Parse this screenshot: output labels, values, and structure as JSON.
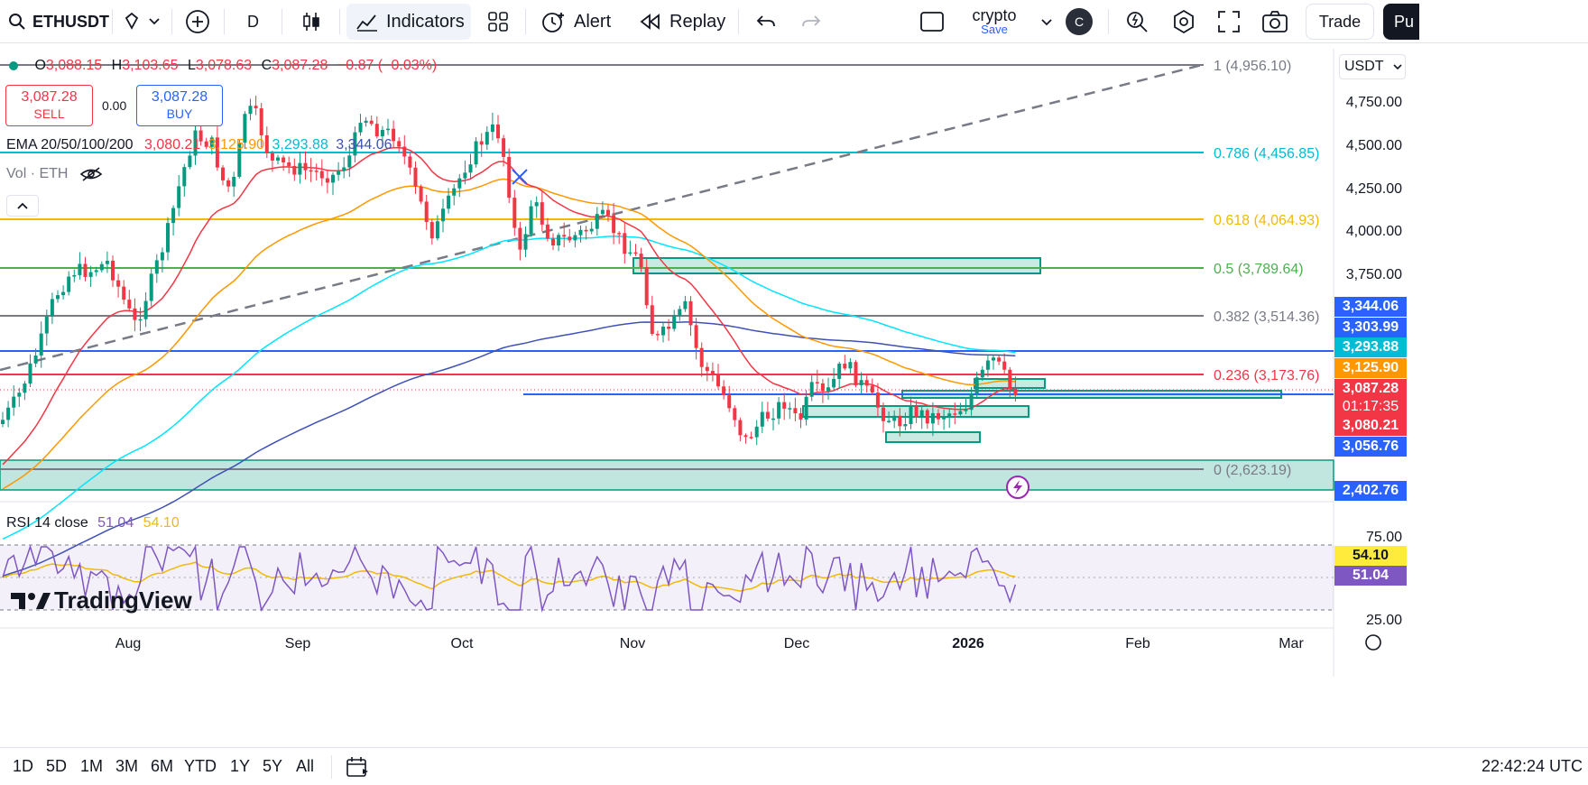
{
  "toolbar": {
    "symbol": "ETHUSDT",
    "interval": "D",
    "indicators_label": "Indicators",
    "alert_label": "Alert",
    "replay_label": "Replay",
    "layout_name": "crypto",
    "layout_save": "Save",
    "avatar_letter": "C",
    "trade_label": "Trade",
    "publish_label": "Pu"
  },
  "legend": {
    "ohlc": {
      "o_label": "O",
      "o": "3,088.15",
      "h_label": "H",
      "h": "3,103.65",
      "l_label": "L",
      "l": "3,078.63",
      "c_label": "C",
      "c": "3,087.28",
      "change": "−0.87 (−0.03%)"
    },
    "sell_price": "3,087.28",
    "sell_label": "SELL",
    "spread": "0.00",
    "buy_price": "3,087.28",
    "buy_label": "BUY",
    "ema_label": "EMA 20/50/100/200",
    "ema_values": [
      "3,080.21",
      "3,125.90",
      "3,293.88",
      "3,344.06"
    ],
    "vol_label": "Vol · ETH",
    "rsi_label": "RSI 14 close",
    "rsi_values": [
      "51.04",
      "54.10"
    ]
  },
  "currency": "USDT",
  "price_axis": [
    "4,750.00",
    "4,500.00",
    "4,250.00",
    "4,000.00",
    "3,750.00"
  ],
  "rsi_axis": [
    "75.00",
    "25.00"
  ],
  "fib_levels": [
    {
      "label": "1 (4,956.10)",
      "color": "#787b86"
    },
    {
      "label": "0.786 (4,456.85)",
      "color": "#00bcd4"
    },
    {
      "label": "0.618 (4,064.93)",
      "color": "#f0b90b"
    },
    {
      "label": "0.5 (3,789.64)",
      "color": "#4caf50"
    },
    {
      "label": "0.382 (3,514.36)",
      "color": "#787b86"
    },
    {
      "label": "0.236 (3,173.76)",
      "color": "#f23645"
    },
    {
      "label": "0 (2,623.19)",
      "color": "#787b86"
    }
  ],
  "price_tags": [
    {
      "text": "3,344.06",
      "color": "#2962ff"
    },
    {
      "text": "3,303.99",
      "color": "#2962ff"
    },
    {
      "text": "3,293.88",
      "color": "#00bcd4"
    },
    {
      "text": "3,125.90",
      "color": "#ff9800"
    },
    {
      "text": "3,087.28",
      "color": "#f23645"
    },
    {
      "text": "01:17:35",
      "color": "#f23645"
    },
    {
      "text": "3,080.21",
      "color": "#f23645"
    },
    {
      "text": "3,056.76",
      "color": "#2962ff"
    },
    {
      "text": "2,402.76",
      "color": "#2962ff"
    }
  ],
  "rsi_tags": [
    {
      "text": "54.10",
      "color": "#ffeb3b"
    },
    {
      "text": "51.04",
      "color": "#7e57c2"
    }
  ],
  "time_axis": [
    "Aug",
    "Sep",
    "Oct",
    "Nov",
    "Dec",
    "2026",
    "Feb",
    "Mar"
  ],
  "watermark": "TradingView",
  "ranges": [
    "1D",
    "5D",
    "1M",
    "3M",
    "6M",
    "YTD",
    "1Y",
    "5Y",
    "All"
  ],
  "clock": "22:42:24 UTC",
  "colors": {
    "up": "#089981",
    "down": "#f23645",
    "ema20": "#f23645",
    "ema50": "#ff9800",
    "ema100": "#00e5ff",
    "ema200": "#3f51b5"
  }
}
